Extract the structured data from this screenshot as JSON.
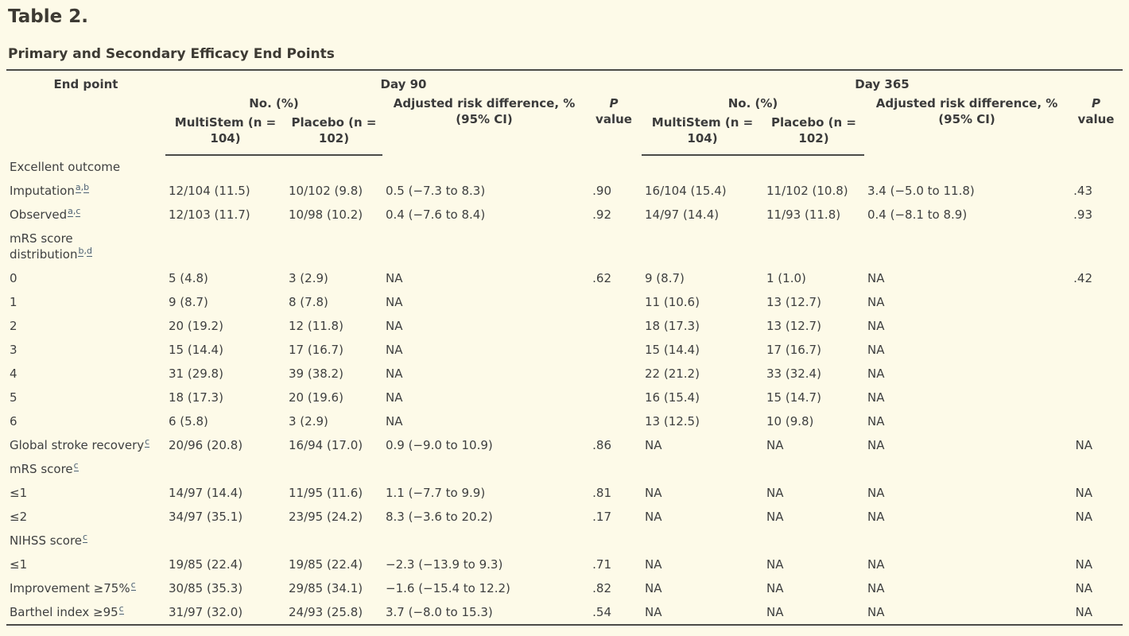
{
  "page": {
    "title": "Table 2.",
    "subtitle": "Primary and Secondary Efficacy End Points"
  },
  "colors": {
    "background": "#fdfae8",
    "text": "#3f4040",
    "heading": "#3d3a33",
    "rule": "#4b4b47",
    "footnote_link": "#4d6173"
  },
  "table": {
    "header": {
      "end_point": "End point",
      "day90": "Day 90",
      "day365": "Day 365",
      "no_pct": "No. (%)",
      "multistem": "MultiStem (n = 104)",
      "placebo": "Placebo (n = 102)",
      "ard": "Adjusted risk difference, % (95% CI)",
      "p_italic": "P",
      "p_rest": "value"
    },
    "rows": [
      {
        "label": "Excellent outcome",
        "sup": "",
        "cells": [
          "",
          "",
          "",
          "",
          "",
          "",
          "",
          ""
        ]
      },
      {
        "label": "Imputation",
        "sup": "a,b",
        "cells": [
          "12/104 (11.5)",
          "10/102 (9.8)",
          "0.5 (−7.3 to 8.3)",
          ".90",
          "16/104 (15.4)",
          "11/102 (10.8)",
          "3.4 (−5.0 to 11.8)",
          ".43"
        ]
      },
      {
        "label": "Observed",
        "sup": "a,c",
        "cells": [
          "12/103 (11.7)",
          "10/98 (10.2)",
          "0.4 (−7.6 to 8.4)",
          ".92",
          "14/97 (14.4)",
          "11/93 (11.8)",
          "0.4 (−8.1 to 8.9)",
          ".93"
        ]
      },
      {
        "label": "mRS score\ndistribution",
        "sup": "b,d",
        "cells": [
          "",
          "",
          "",
          "",
          "",
          "",
          "",
          ""
        ]
      },
      {
        "label": "0",
        "sup": "",
        "cells": [
          "5 (4.8)",
          "3 (2.9)",
          "NA",
          ".62",
          "9 (8.7)",
          "1 (1.0)",
          "NA",
          ".42"
        ]
      },
      {
        "label": "1",
        "sup": "",
        "cells": [
          "9 (8.7)",
          "8 (7.8)",
          "NA",
          "",
          "11 (10.6)",
          "13 (12.7)",
          "NA",
          ""
        ]
      },
      {
        "label": "2",
        "sup": "",
        "cells": [
          "20 (19.2)",
          "12 (11.8)",
          "NA",
          "",
          "18 (17.3)",
          "13 (12.7)",
          "NA",
          ""
        ]
      },
      {
        "label": "3",
        "sup": "",
        "cells": [
          "15 (14.4)",
          "17 (16.7)",
          "NA",
          "",
          "15 (14.4)",
          "17 (16.7)",
          "NA",
          ""
        ]
      },
      {
        "label": "4",
        "sup": "",
        "cells": [
          "31 (29.8)",
          "39 (38.2)",
          "NA",
          "",
          "22 (21.2)",
          "33 (32.4)",
          "NA",
          ""
        ]
      },
      {
        "label": "5",
        "sup": "",
        "cells": [
          "18 (17.3)",
          "20 (19.6)",
          "NA",
          "",
          "16 (15.4)",
          "15 (14.7)",
          "NA",
          ""
        ]
      },
      {
        "label": "6",
        "sup": "",
        "cells": [
          "6 (5.8)",
          "3 (2.9)",
          "NA",
          "",
          "13 (12.5)",
          "10 (9.8)",
          "NA",
          ""
        ]
      },
      {
        "label": "Global stroke recovery",
        "sup": "c",
        "cells": [
          "20/96 (20.8)",
          "16/94 (17.0)",
          "0.9 (−9.0 to 10.9)",
          ".86",
          "NA",
          "NA",
          "NA",
          "NA"
        ]
      },
      {
        "label": "mRS score",
        "sup": "c",
        "cells": [
          "",
          "",
          "",
          "",
          "",
          "",
          "",
          ""
        ]
      },
      {
        "label": "≤1",
        "sup": "",
        "cells": [
          "14/97 (14.4)",
          "11/95 (11.6)",
          "1.1 (−7.7 to 9.9)",
          ".81",
          "NA",
          "NA",
          "NA",
          "NA"
        ]
      },
      {
        "label": "≤2",
        "sup": "",
        "cells": [
          "34/97 (35.1)",
          "23/95 (24.2)",
          "8.3 (−3.6 to 20.2)",
          ".17",
          "NA",
          "NA",
          "NA",
          "NA"
        ]
      },
      {
        "label": "NIHSS score",
        "sup": "c",
        "cells": [
          "",
          "",
          "",
          "",
          "",
          "",
          "",
          ""
        ]
      },
      {
        "label": "≤1",
        "sup": "",
        "cells": [
          "19/85 (22.4)",
          "19/85 (22.4)",
          "−2.3 (−13.9 to 9.3)",
          ".71",
          "NA",
          "NA",
          "NA",
          "NA"
        ]
      },
      {
        "label": "Improvement ≥75%",
        "sup": "c",
        "cells": [
          "30/85 (35.3)",
          "29/85 (34.1)",
          "−1.6 (−15.4 to 12.2)",
          ".82",
          "NA",
          "NA",
          "NA",
          "NA"
        ]
      },
      {
        "label": "Barthel index ≥95",
        "sup": "c",
        "cells": [
          "31/97 (32.0)",
          "24/93 (25.8)",
          "3.7 (−8.0 to 15.3)",
          ".54",
          "NA",
          "NA",
          "NA",
          "NA"
        ]
      }
    ]
  }
}
